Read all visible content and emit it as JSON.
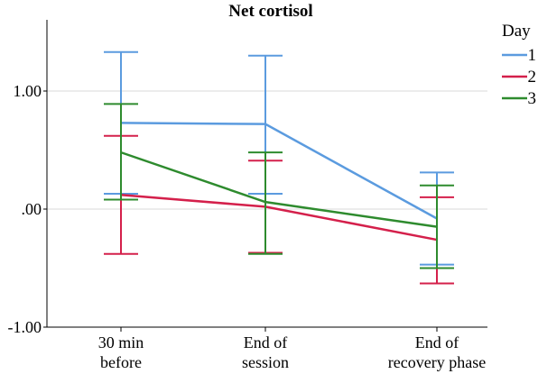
{
  "chart_data": {
    "type": "line",
    "title": "Net cortisol",
    "xlabel": "",
    "ylabel": "",
    "categories": [
      "30 min\nbefore",
      "End of\nsession",
      "End of\nrecovery phase"
    ],
    "ylim": [
      -1.0,
      1.65
    ],
    "yticks": [
      {
        "value": 1.0,
        "label": "1.00"
      },
      {
        "value": 0.0,
        "label": ".00"
      },
      {
        "value": -1.0,
        "label": "-1.00"
      }
    ],
    "grid": "horizontal",
    "legend": {
      "title": "Day",
      "placement": "top-right"
    },
    "series": [
      {
        "name": "1",
        "color": "#5b9bdf",
        "values": [
          0.73,
          0.72,
          -0.08
        ],
        "err_low": [
          0.13,
          0.13,
          -0.47
        ],
        "err_high": [
          1.33,
          1.3,
          0.31
        ]
      },
      {
        "name": "2",
        "color": "#d4204b",
        "values": [
          0.12,
          0.02,
          -0.26
        ],
        "err_low": [
          -0.38,
          -0.37,
          -0.63
        ],
        "err_high": [
          0.62,
          0.41,
          0.1
        ]
      },
      {
        "name": "3",
        "color": "#2e8b2e",
        "values": [
          0.48,
          0.06,
          -0.15
        ],
        "err_low": [
          0.08,
          -0.38,
          -0.5
        ],
        "err_high": [
          0.89,
          0.48,
          0.2
        ]
      }
    ]
  }
}
